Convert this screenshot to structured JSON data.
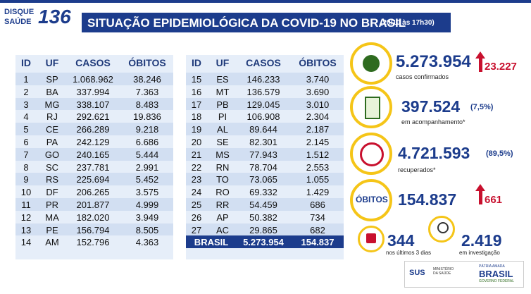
{
  "header": {
    "logo_top": "DISQUE",
    "logo_bottom": "SAÚDE",
    "logo_number": "136",
    "title": "SITUAÇÃO EPIDEMIOLÓGICA DA COVID-19 NO BRASIL",
    "date": "(20/10 às 17h30)"
  },
  "tables": {
    "headers": [
      "ID",
      "UF",
      "CASOS",
      "ÓBITOS"
    ],
    "left": {
      "rows": [
        [
          "1",
          "SP",
          "1.068.962",
          "38.246"
        ],
        [
          "2",
          "BA",
          "337.994",
          "7.363"
        ],
        [
          "3",
          "MG",
          "338.107",
          "8.483"
        ],
        [
          "4",
          "RJ",
          "292.621",
          "19.836"
        ],
        [
          "5",
          "CE",
          "266.289",
          "9.218"
        ],
        [
          "6",
          "PA",
          "242.129",
          "6.686"
        ],
        [
          "7",
          "GO",
          "240.165",
          "5.444"
        ],
        [
          "8",
          "SC",
          "237.781",
          "2.991"
        ],
        [
          "9",
          "RS",
          "225.694",
          "5.452"
        ],
        [
          "10",
          "DF",
          "206.265",
          "3.575"
        ],
        [
          "11",
          "PR",
          "201.877",
          "4.999"
        ],
        [
          "12",
          "MA",
          "182.020",
          "3.949"
        ],
        [
          "13",
          "PE",
          "156.794",
          "8.505"
        ],
        [
          "14",
          "AM",
          "152.796",
          "4.363"
        ]
      ]
    },
    "right": {
      "rows": [
        [
          "15",
          "ES",
          "146.233",
          "3.740"
        ],
        [
          "16",
          "MT",
          "136.579",
          "3.690"
        ],
        [
          "17",
          "PB",
          "129.045",
          "3.010"
        ],
        [
          "18",
          "PI",
          "106.908",
          "2.304"
        ],
        [
          "19",
          "AL",
          "89.644",
          "2.187"
        ],
        [
          "20",
          "SE",
          "82.301",
          "2.145"
        ],
        [
          "21",
          "MS",
          "77.943",
          "1.512"
        ],
        [
          "22",
          "RN",
          "78.704",
          "2.553"
        ],
        [
          "23",
          "TO",
          "73.065",
          "1.055"
        ],
        [
          "24",
          "RO",
          "69.332",
          "1.429"
        ],
        [
          "25",
          "RR",
          "54.459",
          "686"
        ],
        [
          "26",
          "AP",
          "50.382",
          "734"
        ],
        [
          "27",
          "AC",
          "29.865",
          "682"
        ]
      ],
      "total": [
        "BRASIL",
        "5.273.954",
        "154.837"
      ]
    }
  },
  "panels": {
    "confirmed": {
      "value": "5.273.954",
      "new": "23.227",
      "label": "casos confirmados"
    },
    "monitoring": {
      "value": "397.524",
      "percent": "(7,5%)",
      "label": "em acompanhamento*"
    },
    "recovered": {
      "value": "4.721.593",
      "percent": "(89,5%)",
      "label": "recuperados*"
    },
    "deaths": {
      "icon_label": "ÓBITOS",
      "value": "154.837",
      "new": "661"
    },
    "last_days": {
      "value": "344",
      "label": "nos últimos 3 dias"
    },
    "investigation": {
      "value": "2.419",
      "label": "em investigação"
    }
  },
  "footer": {
    "sus": "SUS",
    "ministry": "MINISTÉRIO DA SAÚDE",
    "brasil": "BRASIL",
    "motto": "PÁTRIA AMADA",
    "government": "GOVERNO FEDERAL"
  }
}
